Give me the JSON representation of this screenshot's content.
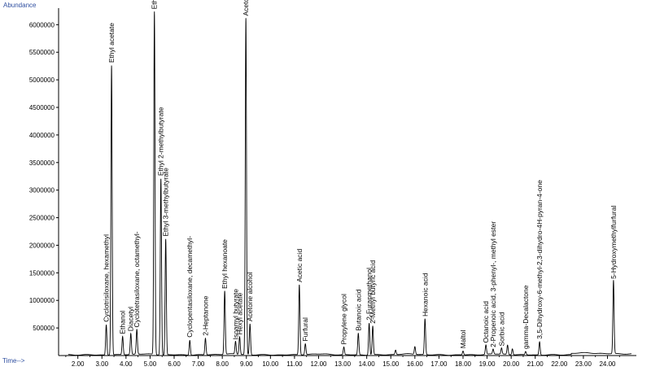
{
  "chart_data": {
    "type": "line",
    "ylabel": "Abundance",
    "xlabel": "Time-->",
    "xlim": [
      1.2,
      25.2
    ],
    "ylim": [
      0,
      6300000
    ],
    "x_ticks": [
      "2.00",
      "3.00",
      "4.00",
      "5.00",
      "6.00",
      "7.00",
      "8.00",
      "9.00",
      "10.00",
      "11.00",
      "12.00",
      "13.00",
      "14.00",
      "15.00",
      "16.00",
      "17.00",
      "18.00",
      "19.00",
      "20.00",
      "21.00",
      "22.00",
      "23.00",
      "24.00"
    ],
    "y_ticks": [
      "500000",
      "1000000",
      "1500000",
      "2000000",
      "2500000",
      "3000000",
      "3500000",
      "4000000",
      "4500000",
      "5000000",
      "5500000",
      "6000000"
    ],
    "grid": false,
    "legend": "none",
    "line_color": "#000000",
    "series": [
      {
        "peaks": [
          {
            "t": 3.18,
            "h": 550000
          },
          {
            "t": 3.4,
            "h": 5250000
          },
          {
            "t": 3.86,
            "h": 330000
          },
          {
            "t": 4.2,
            "h": 380000
          },
          {
            "t": 4.45,
            "h": 450000
          },
          {
            "t": 5.18,
            "h": 6220000
          },
          {
            "t": 5.45,
            "h": 3200000
          },
          {
            "t": 5.65,
            "h": 2100000
          },
          {
            "t": 6.65,
            "h": 270000
          },
          {
            "t": 7.3,
            "h": 300000
          },
          {
            "t": 8.1,
            "h": 1150000
          },
          {
            "t": 8.55,
            "h": 230000
          },
          {
            "t": 8.72,
            "h": 320000
          },
          {
            "t": 8.98,
            "h": 6100000
          },
          {
            "t": 9.15,
            "h": 560000
          },
          {
            "t": 11.2,
            "h": 1270000
          },
          {
            "t": 11.45,
            "h": 200000
          },
          {
            "t": 13.05,
            "h": 140000
          },
          {
            "t": 13.65,
            "h": 390000
          },
          {
            "t": 14.1,
            "h": 580000
          },
          {
            "t": 14.25,
            "h": 520000
          },
          {
            "t": 15.2,
            "h": 80000
          },
          {
            "t": 16.0,
            "h": 140000
          },
          {
            "t": 16.42,
            "h": 650000
          },
          {
            "t": 18.0,
            "h": 70000
          },
          {
            "t": 18.95,
            "h": 170000
          },
          {
            "t": 19.25,
            "h": 90000
          },
          {
            "t": 19.6,
            "h": 110000
          },
          {
            "t": 19.85,
            "h": 170000
          },
          {
            "t": 20.05,
            "h": 110000
          },
          {
            "t": 20.6,
            "h": 60000
          },
          {
            "t": 21.18,
            "h": 240000
          },
          {
            "t": 24.25,
            "h": 1330000
          }
        ]
      }
    ],
    "annotations": [
      {
        "text": "Cyclotrisiloxane, hexamethyl",
        "t": 3.18,
        "h": 550000
      },
      {
        "text": "Ethyl acetate",
        "t": 3.4,
        "h": 5250000
      },
      {
        "text": "Ethanol",
        "t": 3.86,
        "h": 330000
      },
      {
        "text": "Diacetyl",
        "t": 4.2,
        "h": 380000
      },
      {
        "text": "Cyclotetrasiloxane, octamethyl-",
        "t": 4.45,
        "h": 450000
      },
      {
        "text": "Ethyl butyrate",
        "t": 5.18,
        "h": 6220000
      },
      {
        "text": "Ethyl 2-methylbutyrate",
        "t": 5.45,
        "h": 3200000
      },
      {
        "text": "Ethyl 3-methylbutyrate",
        "t": 5.65,
        "h": 2100000
      },
      {
        "text": "Cyclopentasiloxane, decamethyl-",
        "t": 6.65,
        "h": 270000
      },
      {
        "text": "2-Heptanone",
        "t": 7.3,
        "h": 300000
      },
      {
        "text": "Ethyl hexanoate",
        "t": 8.1,
        "h": 1150000
      },
      {
        "text": "Isoamyl butyrate",
        "t": 8.55,
        "h": 230000
      },
      {
        "text": "Hexyl acetate",
        "t": 8.72,
        "h": 320000
      },
      {
        "text": "Acetoin",
        "t": 8.98,
        "h": 6100000
      },
      {
        "text": "Acetone alcohol",
        "t": 9.15,
        "h": 560000
      },
      {
        "text": "Acetic acid",
        "t": 11.2,
        "h": 1270000
      },
      {
        "text": "Furfural",
        "t": 11.45,
        "h": 200000
      },
      {
        "text": "Propylene glycol",
        "t": 13.05,
        "h": 140000
      },
      {
        "text": "Butanoic acid",
        "t": 13.65,
        "h": 390000
      },
      {
        "text": "2-Furanmethanol",
        "t": 14.1,
        "h": 580000
      },
      {
        "text": "2-Methyl butyric acid",
        "t": 14.25,
        "h": 520000
      },
      {
        "text": "Hexanoic acid",
        "t": 16.42,
        "h": 650000
      },
      {
        "text": "Maltol",
        "t": 18.0,
        "h": 70000
      },
      {
        "text": "Octanoic acid",
        "t": 18.95,
        "h": 170000
      },
      {
        "text": "2-Propenoic acid, 3-phenyl-, methyl ester",
        "t": 19.25,
        "h": 90000
      },
      {
        "text": "Sorbic acid",
        "t": 19.6,
        "h": 110000
      },
      {
        "text": "gamma-Decalactone",
        "t": 20.6,
        "h": 60000
      },
      {
        "text": "3,5-Dihydroxy-6-methyl-2,3-dihydro-4H-pyran-4-one",
        "t": 21.18,
        "h": 240000
      },
      {
        "text": "5-Hydroxymethylfurfural",
        "t": 24.25,
        "h": 1330000
      }
    ]
  }
}
